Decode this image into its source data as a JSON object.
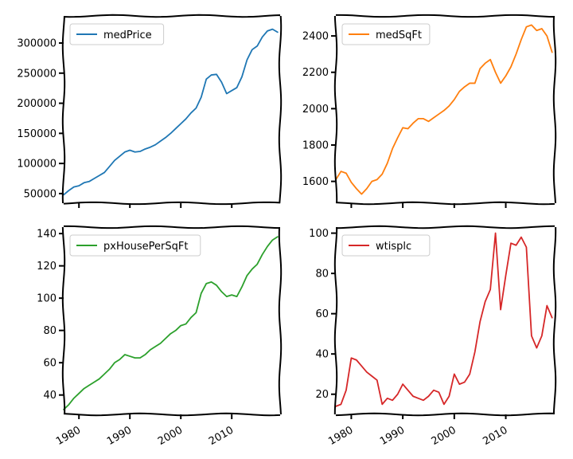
{
  "chart_data": [
    {
      "type": "line",
      "legend": "medPrice",
      "legend_position": "top-left",
      "color": "#1f77b4",
      "xlim": [
        1977,
        2019.5
      ],
      "ylim": [
        34000,
        345000
      ],
      "xticks": [
        1980,
        1990,
        2000,
        2010
      ],
      "xtick_labels_visible": false,
      "yticks": [
        50000,
        100000,
        150000,
        200000,
        250000,
        300000
      ],
      "ytick_labels": [
        "50000",
        "100000",
        "150000",
        "200000",
        "250000",
        "300000"
      ],
      "x": [
        1977,
        1978,
        1979,
        1980,
        1981,
        1982,
        1983,
        1984,
        1985,
        1986,
        1987,
        1988,
        1989,
        1990,
        1991,
        1992,
        1993,
        1994,
        1995,
        1996,
        1997,
        1998,
        1999,
        2000,
        2001,
        2002,
        2003,
        2004,
        2005,
        2006,
        2007,
        2008,
        2009,
        2010,
        2011,
        2012,
        2013,
        2014,
        2015,
        2016,
        2017,
        2018,
        2019
      ],
      "y": [
        48000,
        55000,
        61000,
        63000,
        68000,
        70000,
        75000,
        80000,
        85000,
        95000,
        105000,
        112000,
        119000,
        122000,
        119000,
        120000,
        124000,
        127000,
        131000,
        137000,
        143000,
        150000,
        158000,
        166000,
        174000,
        184000,
        192000,
        210000,
        240000,
        247000,
        248000,
        235000,
        216000,
        221000,
        226000,
        244000,
        272000,
        289000,
        295000,
        310000,
        320000,
        323000,
        318000
      ]
    },
    {
      "type": "line",
      "legend": "medSqFt",
      "legend_position": "top-left",
      "color": "#ff7f0e",
      "xlim": [
        1977,
        2019.5
      ],
      "ylim": [
        1480,
        2510
      ],
      "xticks": [
        1980,
        1990,
        2000,
        2010
      ],
      "xtick_labels_visible": false,
      "yticks": [
        1600,
        1800,
        2000,
        2200,
        2400
      ],
      "ytick_labels": [
        "1600",
        "1800",
        "2000",
        "2200",
        "2400"
      ],
      "x": [
        1977,
        1978,
        1979,
        1980,
        1981,
        1982,
        1983,
        1984,
        1985,
        1986,
        1987,
        1988,
        1989,
        1990,
        1991,
        1992,
        1993,
        1994,
        1995,
        1996,
        1997,
        1998,
        1999,
        2000,
        2001,
        2002,
        2003,
        2004,
        2005,
        2006,
        2007,
        2008,
        2009,
        2010,
        2011,
        2012,
        2013,
        2014,
        2015,
        2016,
        2017,
        2018,
        2019
      ],
      "y": [
        1610,
        1655,
        1645,
        1595,
        1560,
        1530,
        1560,
        1600,
        1610,
        1640,
        1700,
        1780,
        1840,
        1895,
        1890,
        1920,
        1945,
        1945,
        1930,
        1950,
        1970,
        1990,
        2015,
        2050,
        2095,
        2120,
        2140,
        2140,
        2220,
        2250,
        2270,
        2200,
        2140,
        2180,
        2230,
        2300,
        2380,
        2450,
        2460,
        2430,
        2440,
        2400,
        2310
      ]
    },
    {
      "type": "line",
      "legend": "pxHousePerSqFt",
      "legend_position": "top-left",
      "color": "#2ca02c",
      "xlim": [
        1977,
        2019.5
      ],
      "ylim": [
        28,
        144
      ],
      "xticks": [
        1980,
        1990,
        2000,
        2010
      ],
      "xtick_labels_visible": true,
      "yticks": [
        40,
        60,
        80,
        100,
        120,
        140
      ],
      "ytick_labels": [
        "40",
        "60",
        "80",
        "100",
        "120",
        "140"
      ],
      "xtick_labels": [
        "1980",
        "1990",
        "2000",
        "2010"
      ],
      "x": [
        1977,
        1978,
        1979,
        1980,
        1981,
        1982,
        1983,
        1984,
        1985,
        1986,
        1987,
        1988,
        1989,
        1990,
        1991,
        1992,
        1993,
        1994,
        1995,
        1996,
        1997,
        1998,
        1999,
        2000,
        2001,
        2002,
        2003,
        2004,
        2005,
        2006,
        2007,
        2008,
        2009,
        2010,
        2011,
        2012,
        2013,
        2014,
        2015,
        2016,
        2017,
        2018,
        2019
      ],
      "y": [
        31,
        34,
        38,
        41,
        44,
        46,
        48,
        50,
        53,
        56,
        60,
        62,
        65,
        64,
        63,
        63,
        65,
        68,
        70,
        72,
        75,
        78,
        80,
        83,
        84,
        88,
        91,
        103,
        109,
        110,
        108,
        104,
        101,
        102,
        101,
        107,
        114,
        118,
        121,
        127,
        132,
        136,
        138
      ]
    },
    {
      "type": "line",
      "legend": "wtisplc",
      "legend_position": "top-left",
      "color": "#d62728",
      "xlim": [
        1977,
        2019.5
      ],
      "ylim": [
        10,
        103
      ],
      "xticks": [
        1980,
        1990,
        2000,
        2010
      ],
      "xtick_labels_visible": true,
      "yticks": [
        20,
        40,
        60,
        80,
        100
      ],
      "ytick_labels": [
        "20",
        "40",
        "60",
        "80",
        "100"
      ],
      "xtick_labels": [
        "1980",
        "1990",
        "2000",
        "2010"
      ],
      "x": [
        1977,
        1978,
        1979,
        1980,
        1981,
        1982,
        1983,
        1984,
        1985,
        1986,
        1987,
        1988,
        1989,
        1990,
        1991,
        1992,
        1993,
        1994,
        1995,
        1996,
        1997,
        1998,
        1999,
        2000,
        2001,
        2002,
        2003,
        2004,
        2005,
        2006,
        2007,
        2008,
        2009,
        2010,
        2011,
        2012,
        2013,
        2014,
        2015,
        2016,
        2017,
        2018,
        2019
      ],
      "y": [
        14,
        15,
        22,
        38,
        37,
        34,
        31,
        29,
        27,
        15,
        18,
        17,
        20,
        25,
        22,
        19,
        18,
        17,
        19,
        22,
        21,
        15,
        19,
        30,
        25,
        26,
        30,
        41,
        56,
        66,
        72,
        100,
        62,
        79,
        95,
        94,
        98,
        93,
        49,
        43,
        49,
        64,
        58
      ]
    }
  ]
}
